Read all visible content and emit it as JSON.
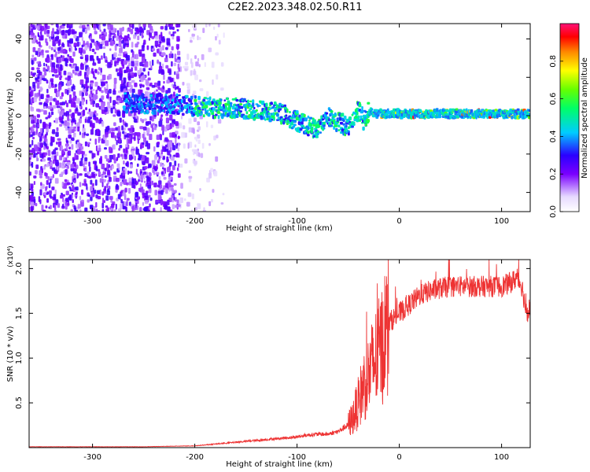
{
  "title": "C2E2.2023.348.02.50.R11",
  "chart_data": [
    {
      "type": "heatmap",
      "xlabel": "Height of straight line (km)",
      "ylabel": "Frequency (Hz)",
      "xlim": [
        -362,
        128
      ],
      "ylim": [
        -50,
        48
      ],
      "xticks": [
        "-300",
        "-200",
        "-100",
        "0",
        "100"
      ],
      "xtick_values": [
        -300,
        -200,
        -100,
        0,
        100
      ],
      "yticks": [
        "40",
        "20",
        "0",
        "-20",
        "-40"
      ],
      "ytick_values": [
        40,
        20,
        0,
        -20,
        -40
      ],
      "colorbar": {
        "label": "Normalized spectral amplitude",
        "range": [
          0,
          1
        ],
        "ticks": [
          "0.0",
          "0.2",
          "0.4",
          "0.6",
          "0.8"
        ],
        "tick_values": [
          0.0,
          0.2,
          0.4,
          0.6,
          0.8
        ]
      },
      "ridge": {
        "x": [
          -270,
          -240,
          -220,
          -200,
          -180,
          -160,
          -140,
          -120,
          -110,
          -100,
          -90,
          -80,
          -70,
          -60,
          -50,
          -40,
          -35,
          -30,
          -20,
          0,
          20,
          40,
          60,
          80,
          100,
          128
        ],
        "y": [
          7,
          6,
          6,
          5,
          4,
          4,
          3,
          2,
          0,
          -3,
          -5,
          -7,
          0,
          -3,
          -6,
          3,
          -2,
          2,
          1,
          1,
          1,
          1,
          1,
          1,
          1,
          1
        ]
      },
      "grid": false
    },
    {
      "type": "line",
      "xlabel": "Height of straight line (km)",
      "ylabel": "SNR (10 * v/v)",
      "y_multiplier": "(x10⁴)",
      "xlim": [
        -362,
        128
      ],
      "ylim": [
        0,
        2.1
      ],
      "xticks": [
        "-300",
        "-200",
        "-100",
        "0",
        "100"
      ],
      "xtick_values": [
        -300,
        -200,
        -100,
        0,
        100
      ],
      "yticks": [
        "2.0",
        "1.5",
        "1.0",
        "0.5"
      ],
      "ytick_values": [
        2.0,
        1.5,
        1.0,
        0.5
      ],
      "series_color": "#ee3333",
      "x": [
        -362,
        -300,
        -250,
        -200,
        -180,
        -160,
        -140,
        -120,
        -100,
        -90,
        -80,
        -70,
        -60,
        -50,
        -45,
        -40,
        -35,
        -30,
        -25,
        -20,
        -15,
        -10,
        0,
        10,
        20,
        30,
        40,
        50,
        60,
        70,
        80,
        90,
        100,
        110,
        115,
        120,
        125,
        128
      ],
      "y": [
        0.01,
        0.01,
        0.01,
        0.02,
        0.04,
        0.06,
        0.08,
        0.1,
        0.12,
        0.14,
        0.15,
        0.15,
        0.18,
        0.25,
        0.35,
        0.5,
        0.7,
        0.8,
        0.95,
        1.05,
        1.2,
        1.4,
        1.5,
        1.6,
        1.7,
        1.75,
        1.78,
        1.8,
        1.8,
        1.8,
        1.8,
        1.8,
        1.8,
        1.85,
        1.9,
        1.8,
        1.45,
        1.6
      ],
      "grid": false
    }
  ]
}
